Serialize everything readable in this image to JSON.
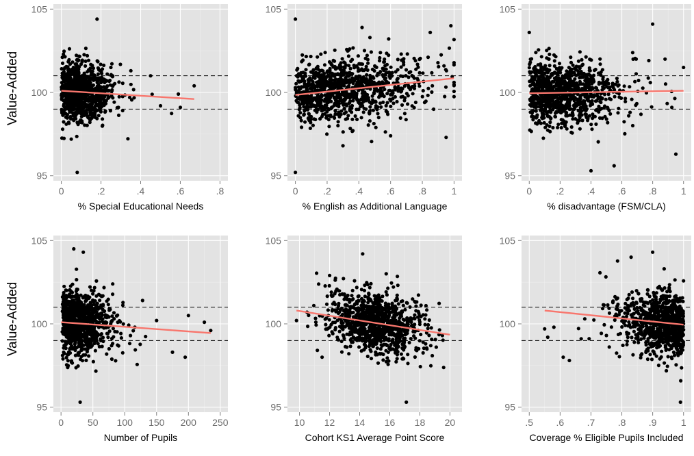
{
  "y_axis_title": "Value-Added",
  "point_color": "#000000",
  "fit_color": "#f8766d",
  "panel_background": "#e3e3e3",
  "chart_data": [
    {
      "type": "scatter",
      "xlabel": "% Special Educational Needs",
      "ylabel": "Value-Added",
      "xlim": [
        -0.04,
        0.84
      ],
      "ylim": [
        94.7,
        105.3
      ],
      "xticks": [
        0,
        0.2,
        0.4,
        0.6,
        0.8
      ],
      "xtick_labels": [
        "0",
        ".2",
        ".4",
        ".6",
        ".8"
      ],
      "yticks": [
        95,
        100,
        105
      ],
      "ytick_labels": [
        "95",
        "100",
        "105"
      ],
      "reference_lines_y": [
        99,
        101
      ],
      "fit_line": [
        [
          0,
          100.1
        ],
        [
          0.67,
          99.6
        ]
      ],
      "cloud": {
        "count": 900,
        "x_mean": 0.12,
        "x_sd": 0.09,
        "x_skew": 1.3,
        "x_min": 0,
        "x_max": 0.67,
        "y_sd": 0.9
      },
      "sample_points": [
        [
          0.1,
          100.8
        ],
        [
          0.25,
          101.5
        ],
        [
          0.45,
          101.0
        ],
        [
          0.5,
          99.2
        ],
        [
          0.59,
          99.9
        ],
        [
          0.6,
          99.1
        ],
        [
          0.67,
          100.4
        ],
        [
          0.05,
          97.2
        ],
        [
          0.18,
          104.4
        ],
        [
          0.08,
          95.2
        ]
      ],
      "grid": true
    },
    {
      "type": "scatter",
      "xlabel": "% English as Additional Language",
      "ylabel": "Value-Added",
      "xlim": [
        -0.05,
        1.05
      ],
      "ylim": [
        94.7,
        105.3
      ],
      "xticks": [
        0,
        0.2,
        0.4,
        0.6,
        0.8,
        1
      ],
      "xtick_labels": [
        "0",
        ".2",
        ".4",
        ".6",
        ".8",
        "1"
      ],
      "yticks": [
        95,
        100,
        105
      ],
      "ytick_labels": [
        "95",
        "100",
        "105"
      ],
      "reference_lines_y": [
        99,
        101
      ],
      "fit_line": [
        [
          0,
          99.85
        ],
        [
          1,
          100.85
        ]
      ],
      "cloud": {
        "count": 1000,
        "x_mean": 0.05,
        "x_sd": 0.35,
        "x_skew": 1.0,
        "x_min": 0,
        "x_max": 1,
        "y_sd": 0.95
      },
      "sample_points": [
        [
          0.0,
          104.4
        ],
        [
          0.0,
          95.2
        ],
        [
          0.42,
          103.9
        ],
        [
          0.85,
          103.6
        ],
        [
          0.98,
          104.0
        ],
        [
          0.6,
          97.4
        ],
        [
          0.3,
          96.8
        ],
        [
          0.95,
          97.3
        ]
      ],
      "grid": true
    },
    {
      "type": "scatter",
      "xlabel": "% disadvantage (FSM/CLA)",
      "ylabel": "Value-Added",
      "xlim": [
        -0.05,
        1.05
      ],
      "ylim": [
        94.7,
        105.3
      ],
      "xticks": [
        0,
        0.2,
        0.4,
        0.6,
        0.8,
        1
      ],
      "xtick_labels": [
        "0",
        ".2",
        ".4",
        ".6",
        ".8",
        "1"
      ],
      "yticks": [
        95,
        100,
        105
      ],
      "ytick_labels": [
        "95",
        "100",
        "105"
      ],
      "reference_lines_y": [
        99,
        101
      ],
      "fit_line": [
        [
          0,
          99.95
        ],
        [
          1,
          100.1
        ]
      ],
      "cloud": {
        "count": 1000,
        "x_mean": 0.3,
        "x_sd": 0.25,
        "x_skew": 0.8,
        "x_min": 0,
        "x_max": 1,
        "y_sd": 0.95
      },
      "sample_points": [
        [
          0.4,
          95.3
        ],
        [
          0.55,
          95.6
        ],
        [
          0.8,
          104.1
        ],
        [
          0.95,
          96.3
        ],
        [
          1.0,
          101.5
        ],
        [
          0.0,
          103.6
        ],
        [
          0.88,
          102.0
        ]
      ],
      "grid": true
    },
    {
      "type": "scatter",
      "xlabel": "Number of Pupils",
      "ylabel": "Value-Added",
      "xlim": [
        -12,
        262
      ],
      "ylim": [
        94.7,
        105.3
      ],
      "xticks": [
        0,
        50,
        100,
        150,
        200,
        250
      ],
      "xtick_labels": [
        "0",
        "50",
        "100",
        "150",
        "200",
        "250"
      ],
      "yticks": [
        95,
        100,
        105
      ],
      "ytick_labels": [
        "95",
        "100",
        "105"
      ],
      "reference_lines_y": [
        99,
        101
      ],
      "fit_line": [
        [
          0,
          100.1
        ],
        [
          235,
          99.45
        ]
      ],
      "cloud": {
        "count": 900,
        "x_mean": 30,
        "x_sd": 25,
        "x_skew": 1.4,
        "x_min": 2,
        "x_max": 235,
        "y_sd": 0.95
      },
      "sample_points": [
        [
          5,
          98.7
        ],
        [
          20,
          104.5
        ],
        [
          35,
          104.3
        ],
        [
          30,
          95.3
        ],
        [
          150,
          100.2
        ],
        [
          200,
          100.5
        ],
        [
          225,
          100.1
        ],
        [
          235,
          99.6
        ],
        [
          175,
          98.3
        ],
        [
          195,
          98.0
        ],
        [
          128,
          101.4
        ]
      ],
      "grid": true
    },
    {
      "type": "scatter",
      "xlabel": "Cohort KS1 Average Point Score",
      "ylabel": "Value-Added",
      "xlim": [
        9.2,
        20.8
      ],
      "ylim": [
        94.7,
        105.3
      ],
      "xticks": [
        10,
        12,
        14,
        16,
        18,
        20
      ],
      "xtick_labels": [
        "10",
        "12",
        "14",
        "16",
        "18",
        "20"
      ],
      "yticks": [
        95,
        100,
        105
      ],
      "ytick_labels": [
        "95",
        "100",
        "105"
      ],
      "reference_lines_y": [
        99,
        101
      ],
      "fit_line": [
        [
          9.8,
          100.8
        ],
        [
          20,
          99.35
        ]
      ],
      "cloud": {
        "count": 1000,
        "x_mean": 15.0,
        "x_sd": 1.55,
        "x_skew": 0,
        "x_min": 9.8,
        "x_max": 20,
        "y_sd": 0.95
      },
      "sample_points": [
        [
          9.8,
          100.2
        ],
        [
          10.5,
          100.7
        ],
        [
          12,
          102.9
        ],
        [
          14.2,
          104.2
        ],
        [
          17.1,
          95.3
        ],
        [
          19.5,
          99.3
        ],
        [
          11.5,
          98.0
        ]
      ],
      "grid": true
    },
    {
      "type": "scatter",
      "xlabel": "Coverage % Eligible Pupils Included",
      "ylabel": "Value-Added",
      "xlim": [
        0.475,
        1.025
      ],
      "ylim": [
        94.7,
        105.3
      ],
      "xticks": [
        0.5,
        0.6,
        0.7,
        0.8,
        0.9,
        1
      ],
      "xtick_labels": [
        ".5",
        ".6",
        ".7",
        ".8",
        ".9",
        "1"
      ],
      "yticks": [
        95,
        100,
        105
      ],
      "ytick_labels": [
        "95",
        "100",
        "105"
      ],
      "reference_lines_y": [
        99,
        101
      ],
      "fit_line": [
        [
          0.55,
          100.8
        ],
        [
          1,
          99.95
        ]
      ],
      "cloud": {
        "count": 900,
        "x_mean": 0.95,
        "x_sd": 0.06,
        "x_skew": -1.6,
        "x_min": 0.55,
        "x_max": 1,
        "y_sd": 0.95
      },
      "sample_points": [
        [
          0.55,
          99.7
        ],
        [
          0.56,
          99.2
        ],
        [
          0.58,
          99.8
        ],
        [
          0.61,
          98.0
        ],
        [
          0.63,
          97.8
        ],
        [
          0.68,
          100.3
        ],
        [
          0.75,
          99.3
        ],
        [
          0.83,
          104.0
        ],
        [
          0.9,
          104.3
        ],
        [
          0.99,
          95.3
        ]
      ],
      "grid": true
    }
  ]
}
